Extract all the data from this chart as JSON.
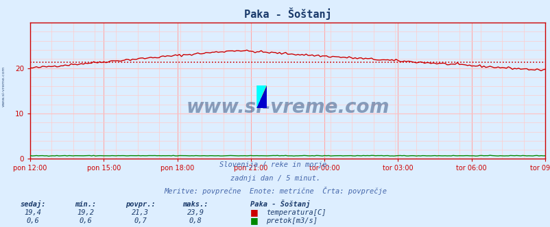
{
  "title": "Paka - Šoštanj",
  "background_color": "#ddeeff",
  "plot_bg_color": "#ddeeff",
  "grid_color_major": "#ffaaaa",
  "grid_color_minor": "#ffcccc",
  "xlabel_ticks": [
    "pon 12:00",
    "pon 15:00",
    "pon 18:00",
    "pon 21:00",
    "tor 00:00",
    "tor 03:00",
    "tor 06:00",
    "tor 09:00"
  ],
  "ylim": [
    0,
    30
  ],
  "yticks": [
    0,
    10,
    20
  ],
  "temp_avg": 21.3,
  "temp_min": 19.2,
  "temp_max": 23.9,
  "temp_current": 19.4,
  "flow_avg": 0.7,
  "flow_min": 0.6,
  "flow_max": 0.8,
  "flow_current": 0.6,
  "avg_line_color": "#cc0000",
  "temp_line_color": "#cc0000",
  "flow_line_color": "#008800",
  "watermark": "www.si-vreme.com",
  "watermark_color": "#1a3a6a",
  "subtitle1": "Slovenija / reke in morje.",
  "subtitle2": "zadnji dan / 5 minut.",
  "subtitle3": "Meritve: povprečne  Enote: metrične  Črta: povprečje",
  "subtitle_color": "#4466aa",
  "label_color": "#1a3a6a",
  "n_points": 253,
  "axis_color": "#cc0000",
  "side_text": "www.si-vreme.com",
  "legend_station": "Paka - Šoštanj",
  "legend_temp_label": "temperatura[C]",
  "legend_flow_label": "pretok[m3/s]",
  "legend_temp_color": "#cc0000",
  "legend_flow_color": "#008800",
  "col_headers": [
    "sedaj:",
    "min.:",
    "povpr.:",
    "maks.:"
  ],
  "col_values_temp": [
    "19,4",
    "19,2",
    "21,3",
    "23,9"
  ],
  "col_values_flow": [
    "0,6",
    "0,6",
    "0,7",
    "0,8"
  ]
}
